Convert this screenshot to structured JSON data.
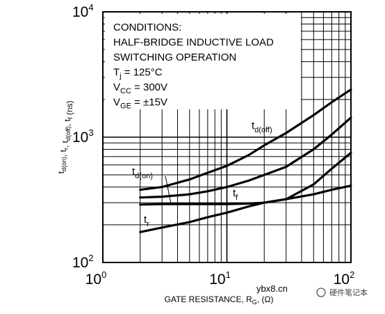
{
  "chart_data": {
    "type": "line",
    "x_scale": "log",
    "y_scale": "log",
    "xlim": [
      1,
      100
    ],
    "ylim": [
      100,
      10000
    ],
    "grid": true,
    "x_ticks": [
      {
        "base": "10",
        "exp": "0",
        "value": 1
      },
      {
        "base": "10",
        "exp": "1",
        "value": 10
      },
      {
        "base": "10",
        "exp": "2",
        "value": 100
      }
    ],
    "y_ticks": [
      {
        "base": "10",
        "exp": "2",
        "value": 100
      },
      {
        "base": "10",
        "exp": "3",
        "value": 1000
      },
      {
        "base": "10",
        "exp": "4",
        "value": 10000
      }
    ],
    "xlabel": {
      "main": "GATE RESISTANCE, R",
      "sub": "G",
      "tail": ", (Ω)"
    },
    "ylabel": {
      "parts": [
        {
          "t": "t",
          "s": "d(on)"
        },
        {
          "t": ", t",
          "s": "r"
        },
        {
          "t": ", t",
          "s": "d(off)"
        },
        {
          "t": ", t",
          "s": "f"
        },
        {
          "t": " (ns)",
          "s": ""
        }
      ]
    },
    "conditions": [
      {
        "text": "CONDITIONS:",
        "sub": "",
        "rest": ""
      },
      {
        "text": "HALF-BRIDGE INDUCTIVE LOAD",
        "sub": "",
        "rest": ""
      },
      {
        "text": "SWITCHING OPERATION",
        "sub": "",
        "rest": ""
      },
      {
        "text": "T",
        "sub": "j",
        "rest": " = 125°C"
      },
      {
        "text": "V",
        "sub": "CC",
        "rest": " = 300V"
      },
      {
        "text": "V",
        "sub": "GE",
        "rest": " = ±15V"
      }
    ],
    "series": [
      {
        "name": "t",
        "name_sub": "d(off)",
        "x": [
          2,
          3,
          5,
          7,
          10,
          15,
          20,
          30,
          50,
          70,
          100
        ],
        "y": [
          380,
          400,
          460,
          520,
          590,
          720,
          860,
          1080,
          1500,
          1900,
          2400
        ]
      },
      {
        "name": "t",
        "name_sub": "f",
        "x": [
          2,
          3,
          5,
          7,
          10,
          15,
          20,
          30,
          50,
          70,
          100
        ],
        "y": [
          330,
          335,
          350,
          370,
          400,
          450,
          500,
          580,
          800,
          1050,
          1430
        ]
      },
      {
        "name": "t",
        "name_sub": "d(on)",
        "x": [
          2,
          3,
          5,
          7,
          10,
          15,
          20,
          30,
          50,
          70,
          100
        ],
        "y": [
          290,
          292,
          292,
          292,
          292,
          295,
          300,
          320,
          420,
          560,
          750
        ]
      },
      {
        "name": "t",
        "name_sub": "r",
        "x": [
          2,
          3,
          5,
          7,
          10,
          15,
          20,
          30,
          50,
          70,
          100
        ],
        "y": [
          175,
          190,
          210,
          230,
          250,
          280,
          300,
          320,
          350,
          380,
          410
        ]
      }
    ]
  },
  "watermark": {
    "site": "ybx8.cn",
    "name": "硬件笔记本"
  }
}
